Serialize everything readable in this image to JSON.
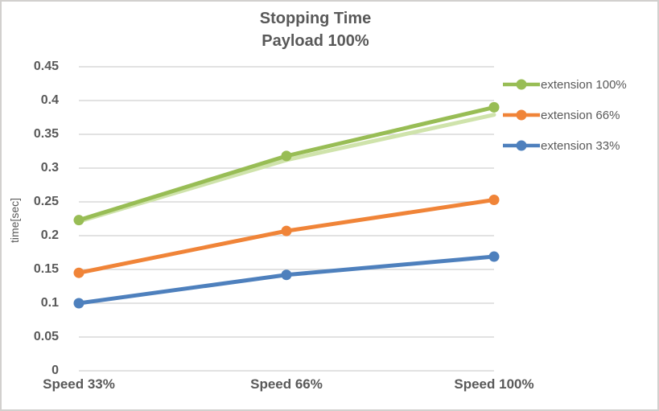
{
  "window": {
    "background_color": "#ffffff",
    "border_color": "#d2d0ce",
    "text_color": "#595959"
  },
  "chart_data": {
    "type": "line",
    "title_lines": [
      "Stopping Time",
      "Payload 100%"
    ],
    "title": "Stopping Time Payload 100%",
    "categories": [
      "Speed 33%",
      "Speed 66%",
      "Speed 100%"
    ],
    "series": [
      {
        "name": "extension 100%",
        "color": "#98bd55",
        "values": [
          0.223,
          0.318,
          0.39
        ],
        "shadow_color": "#cfe3ab",
        "shadow_values": [
          0.221,
          0.312,
          0.379
        ]
      },
      {
        "name": "extension 66%",
        "color": "#f08438",
        "values": [
          0.145,
          0.207,
          0.253
        ]
      },
      {
        "name": "extension 33%",
        "color": "#4e80bd",
        "values": [
          0.1,
          0.142,
          0.169
        ]
      }
    ],
    "xlabel": "",
    "ylabel": "time[sec]",
    "ylim": [
      0,
      0.45
    ],
    "y_tick_step": 0.05,
    "y_tick_labels": [
      "0",
      "0.05",
      "0.1",
      "0.15",
      "0.2",
      "0.25",
      "0.3",
      "0.35",
      "0.4",
      "0.45"
    ],
    "grid": true,
    "gridline_color": "#d9d9d9",
    "marker": "circle",
    "legend_position": "right"
  }
}
